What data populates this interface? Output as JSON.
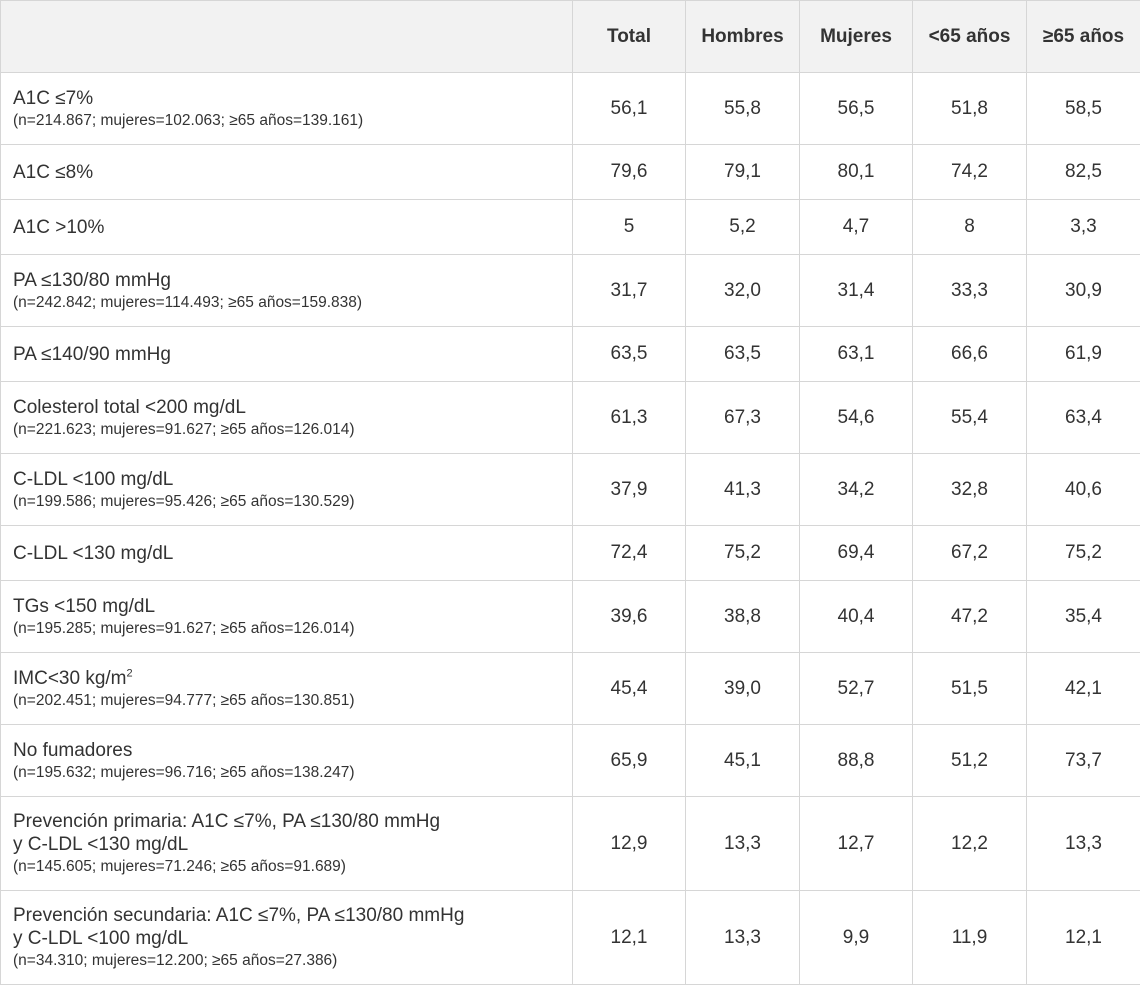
{
  "table": {
    "columns": [
      "",
      "Total",
      "Hombres",
      "Mujeres",
      "<65 años",
      "≥65 años"
    ],
    "rows": [
      {
        "lines": [
          "A1C ≤7%"
        ],
        "sub": "(n=214.867; mujeres=102.063; ≥65 años=139.161)",
        "values": [
          "56,1",
          "55,8",
          "56,5",
          "51,8",
          "58,5"
        ]
      },
      {
        "lines": [
          "A1C ≤8%"
        ],
        "sub": "",
        "values": [
          "79,6",
          "79,1",
          "80,1",
          "74,2",
          "82,5"
        ]
      },
      {
        "lines": [
          "A1C >10%"
        ],
        "sub": "",
        "values": [
          "5",
          "5,2",
          "4,7",
          "8",
          "3,3"
        ]
      },
      {
        "lines": [
          "PA ≤130/80 mmHg"
        ],
        "sub": "(n=242.842; mujeres=114.493; ≥65 años=159.838)",
        "values": [
          "31,7",
          "32,0",
          "31,4",
          "33,3",
          "30,9"
        ]
      },
      {
        "lines": [
          "PA ≤140/90 mmHg"
        ],
        "sub": "",
        "values": [
          "63,5",
          "63,5",
          "63,1",
          "66,6",
          "61,9"
        ]
      },
      {
        "lines": [
          "Colesterol total <200 mg/dL"
        ],
        "sub": "(n=221.623; mujeres=91.627; ≥65 años=126.014)",
        "values": [
          "61,3",
          "67,3",
          "54,6",
          "55,4",
          "63,4"
        ]
      },
      {
        "lines": [
          "C-LDL <100 mg/dL"
        ],
        "sub": "(n=199.586; mujeres=95.426; ≥65 años=130.529)",
        "values": [
          "37,9",
          "41,3",
          "34,2",
          "32,8",
          "40,6"
        ]
      },
      {
        "lines": [
          "C-LDL <130 mg/dL"
        ],
        "sub": "",
        "values": [
          "72,4",
          "75,2",
          "69,4",
          "67,2",
          "75,2"
        ]
      },
      {
        "lines": [
          "TGs <150 mg/dL"
        ],
        "sub": "(n=195.285; mujeres=91.627; ≥65 años=126.014)",
        "values": [
          "39,6",
          "38,8",
          "40,4",
          "47,2",
          "35,4"
        ]
      },
      {
        "lines": [
          "IMC<30 kg/m"
        ],
        "sup": "2",
        "sub": "(n=202.451; mujeres=94.777; ≥65 años=130.851)",
        "values": [
          "45,4",
          "39,0",
          "52,7",
          "51,5",
          "42,1"
        ]
      },
      {
        "lines": [
          "No fumadores"
        ],
        "sub": "(n=195.632; mujeres=96.716; ≥65 años=138.247)",
        "values": [
          "65,9",
          "45,1",
          "88,8",
          "51,2",
          "73,7"
        ]
      },
      {
        "lines": [
          "Prevención primaria: A1C ≤7%, PA ≤130/80 mmHg",
          "y C-LDL <130 mg/dL"
        ],
        "sub": "(n=145.605; mujeres=71.246; ≥65 años=91.689)",
        "values": [
          "12,9",
          "13,3",
          "12,7",
          "12,2",
          "13,3"
        ]
      },
      {
        "lines": [
          "Prevención secundaria: A1C ≤7%, PA ≤130/80 mmHg",
          "y C-LDL <100 mg/dL"
        ],
        "sub": "(n=34.310; mujeres=12.200; ≥65 años=27.386)",
        "values": [
          "12,1",
          "13,3",
          "9,9",
          "11,9",
          "12,1"
        ]
      }
    ]
  },
  "colors": {
    "header_bg": "#f2f2f2",
    "border": "#d6d6d6",
    "text": "#333333"
  }
}
